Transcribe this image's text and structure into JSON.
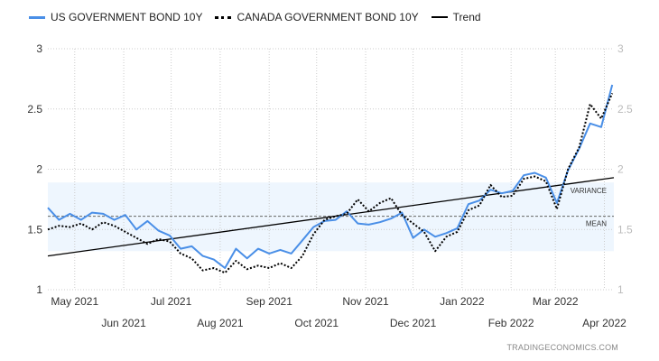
{
  "chart_data": {
    "type": "line",
    "title": "",
    "legend": [
      "US GOVERNMENT BOND 10Y",
      "CANADA GOVERNMENT BOND 10Y",
      "Trend"
    ],
    "legend_placement": "top-left",
    "xrange": [
      "2021-04-14",
      "2022-04-07"
    ],
    "ylim": [
      1,
      3
    ],
    "yticks": [
      "1",
      "1.5",
      "2",
      "2.5",
      "3"
    ],
    "xticks": [
      {
        "date": "2021-05-01",
        "label": "May 2021",
        "row": 1
      },
      {
        "date": "2021-06-01",
        "label": "Jun 2021",
        "row": 2
      },
      {
        "date": "2021-07-01",
        "label": "Jul 2021",
        "row": 1
      },
      {
        "date": "2021-08-01",
        "label": "Aug 2021",
        "row": 2
      },
      {
        "date": "2021-09-01",
        "label": "Sep 2021",
        "row": 1
      },
      {
        "date": "2021-10-01",
        "label": "Oct 2021",
        "row": 2
      },
      {
        "date": "2021-11-01",
        "label": "Nov 2021",
        "row": 1
      },
      {
        "date": "2021-12-01",
        "label": "Dec 2021",
        "row": 2
      },
      {
        "date": "2022-01-01",
        "label": "Jan 2022",
        "row": 1
      },
      {
        "date": "2022-02-01",
        "label": "Feb 2022",
        "row": 2
      },
      {
        "date": "2022-03-01",
        "label": "Mar 2022",
        "row": 1
      },
      {
        "date": "2022-04-01",
        "label": "Apr 2022",
        "row": 2
      }
    ],
    "grid": true,
    "dates": [
      "2021-04-14",
      "2021-04-21",
      "2021-04-28",
      "2021-05-05",
      "2021-05-12",
      "2021-05-19",
      "2021-05-26",
      "2021-06-02",
      "2021-06-09",
      "2021-06-16",
      "2021-06-23",
      "2021-06-30",
      "2021-07-07",
      "2021-07-14",
      "2021-07-21",
      "2021-07-28",
      "2021-08-04",
      "2021-08-11",
      "2021-08-18",
      "2021-08-25",
      "2021-09-01",
      "2021-09-08",
      "2021-09-15",
      "2021-09-22",
      "2021-09-29",
      "2021-10-06",
      "2021-10-13",
      "2021-10-20",
      "2021-10-27",
      "2021-11-03",
      "2021-11-10",
      "2021-11-17",
      "2021-11-24",
      "2021-12-01",
      "2021-12-08",
      "2021-12-15",
      "2021-12-22",
      "2021-12-29",
      "2022-01-05",
      "2022-01-12",
      "2022-01-19",
      "2022-01-26",
      "2022-02-02",
      "2022-02-09",
      "2022-02-16",
      "2022-02-23",
      "2022-03-02",
      "2022-03-09",
      "2022-03-16",
      "2022-03-23",
      "2022-03-30",
      "2022-04-06"
    ],
    "series": [
      {
        "name": "US GOVERNMENT BOND 10Y",
        "color": "#4a8fe7",
        "style": "solid",
        "values": [
          1.68,
          1.58,
          1.63,
          1.58,
          1.64,
          1.63,
          1.58,
          1.62,
          1.5,
          1.57,
          1.49,
          1.45,
          1.34,
          1.36,
          1.28,
          1.25,
          1.18,
          1.34,
          1.26,
          1.34,
          1.3,
          1.33,
          1.3,
          1.41,
          1.52,
          1.57,
          1.58,
          1.65,
          1.55,
          1.54,
          1.56,
          1.59,
          1.64,
          1.43,
          1.5,
          1.44,
          1.47,
          1.51,
          1.71,
          1.74,
          1.83,
          1.8,
          1.82,
          1.95,
          1.97,
          1.93,
          1.72,
          1.99,
          2.17,
          2.38,
          2.35,
          2.7
        ]
      },
      {
        "name": "CANADA GOVERNMENT BOND 10Y",
        "color": "#000000",
        "style": "dotted",
        "values": [
          1.5,
          1.53,
          1.52,
          1.55,
          1.5,
          1.56,
          1.53,
          1.48,
          1.43,
          1.38,
          1.42,
          1.4,
          1.3,
          1.26,
          1.16,
          1.18,
          1.14,
          1.24,
          1.17,
          1.2,
          1.18,
          1.22,
          1.18,
          1.28,
          1.46,
          1.58,
          1.61,
          1.63,
          1.75,
          1.65,
          1.72,
          1.76,
          1.62,
          1.55,
          1.48,
          1.32,
          1.44,
          1.48,
          1.66,
          1.7,
          1.87,
          1.77,
          1.78,
          1.92,
          1.94,
          1.9,
          1.67,
          2.0,
          2.18,
          2.54,
          2.42,
          2.63
        ]
      }
    ],
    "trend": {
      "name": "Trend",
      "start": 1.28,
      "end": 1.93
    },
    "mean": {
      "label": "MEAN",
      "value": 1.61
    },
    "variance": {
      "label": "VARIANCE",
      "low": 1.32,
      "high": 1.89
    }
  },
  "credit": "TRADINGECONOMICS.COM"
}
